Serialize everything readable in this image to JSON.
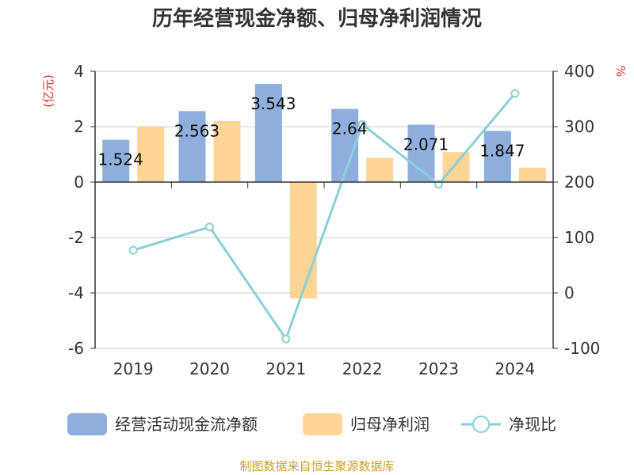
{
  "chart_data": {
    "type": "bar",
    "title": "历年经营现金净额、归母净利润情况",
    "categories": [
      "2019",
      "2020",
      "2021",
      "2022",
      "2023",
      "2024"
    ],
    "y_left": {
      "unit": "(亿元)",
      "lim": [
        -6,
        4
      ],
      "ticks": [
        4,
        2,
        0,
        -2,
        -4,
        -6
      ]
    },
    "y_right": {
      "unit": "%",
      "lim": [
        -100,
        400
      ],
      "ticks": [
        400,
        300,
        200,
        100,
        0,
        -100
      ]
    },
    "series": [
      {
        "name": "经营活动现金流净额",
        "type": "bar",
        "axis": "left",
        "color": "#8eaedc",
        "values": [
          1.524,
          2.563,
          3.543,
          2.64,
          2.071,
          1.847
        ],
        "labels": [
          "1.524",
          "2.563",
          "3.543",
          "2.64",
          "2.071",
          "1.847"
        ]
      },
      {
        "name": "归母净利润",
        "type": "bar",
        "axis": "left",
        "color": "#fdd597",
        "values": [
          2.0,
          2.2,
          -4.2,
          0.88,
          1.08,
          0.52
        ]
      },
      {
        "name": "净现比",
        "type": "line",
        "axis": "right",
        "color": "#8ad0d8",
        "values": [
          77,
          119,
          -83,
          304,
          196,
          360
        ]
      }
    ],
    "legend_position": "bottom",
    "grid": true
  },
  "source": "制图数据来自恒生聚源数据库"
}
